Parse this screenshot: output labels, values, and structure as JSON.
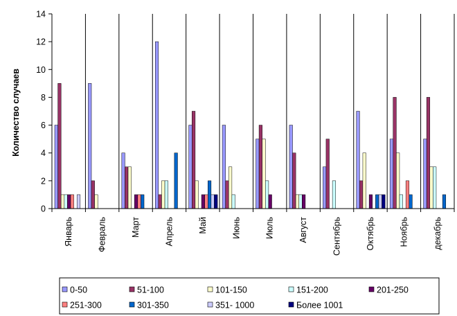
{
  "chart_data": {
    "type": "bar",
    "title": "",
    "xlabel": "",
    "ylabel": "Количество случаев",
    "ylim": [
      0,
      14
    ],
    "yticks": [
      0,
      2,
      4,
      6,
      8,
      10,
      12,
      14
    ],
    "grid": "vertical",
    "legend_position": "bottom",
    "categories": [
      "Январь",
      "Февраль",
      "Март",
      "Апрель",
      "Май",
      "Июнь",
      "Июль",
      "Август",
      "Сентябрь",
      "Октябрь",
      "Ноябрь",
      "декабрь"
    ],
    "series": [
      {
        "name": "0-50",
        "color": "#9999ff",
        "values": [
          6,
          9,
          4,
          12,
          6,
          6,
          5,
          6,
          3,
          7,
          5,
          5
        ]
      },
      {
        "name": "51-100",
        "color": "#993366",
        "values": [
          9,
          2,
          3,
          1,
          7,
          2,
          6,
          4,
          5,
          2,
          8,
          8
        ]
      },
      {
        "name": "101-150",
        "color": "#ffffcc",
        "values": [
          1,
          1,
          3,
          2,
          2,
          3,
          5,
          1,
          0,
          4,
          4,
          3
        ]
      },
      {
        "name": "151-200",
        "color": "#ccffff",
        "values": [
          1,
          0,
          0,
          2,
          0,
          1,
          2,
          1,
          2,
          0,
          1,
          3
        ]
      },
      {
        "name": "201-250",
        "color": "#660066",
        "values": [
          1,
          0,
          1,
          0,
          1,
          0,
          1,
          1,
          0,
          1,
          0,
          0
        ]
      },
      {
        "name": "251-300",
        "color": "#ff8080",
        "values": [
          1,
          0,
          1,
          0,
          1,
          0,
          0,
          0,
          0,
          0,
          2,
          0
        ]
      },
      {
        "name": "301-350",
        "color": "#0066cc",
        "values": [
          0,
          0,
          1,
          4,
          2,
          0,
          0,
          0,
          0,
          1,
          1,
          1
        ]
      },
      {
        "name": "351- 1000",
        "color": "#ccccff",
        "values": [
          1,
          0,
          0,
          0,
          1,
          0,
          0,
          0,
          0,
          1,
          0,
          0
        ]
      },
      {
        "name": "Более 1001",
        "color": "#000080",
        "values": [
          0,
          0,
          0,
          0,
          1,
          0,
          0,
          0,
          0,
          1,
          0,
          0
        ]
      }
    ]
  }
}
